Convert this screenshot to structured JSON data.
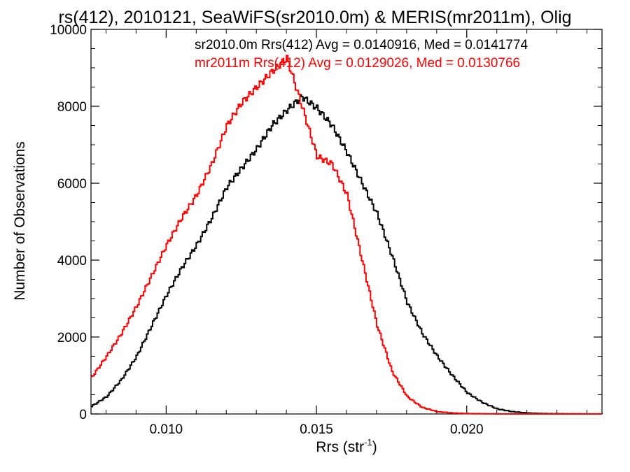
{
  "chart_data": {
    "type": "line",
    "title": "rs(412), 2010121, SeaWiFS(sr2010.0m) & MERIS(mr2011m), Olig",
    "xlabel": "Rrs (str",
    "xlabel_sup": "-1",
    "xlabel_suffix": ")",
    "ylabel": "Number of Observations",
    "xlim": [
      0.0075,
      0.0245
    ],
    "ylim": [
      0,
      10000
    ],
    "x_ticks": [
      0.01,
      0.015,
      0.02
    ],
    "x_tick_labels": [
      "0.010",
      "0.015",
      "0.020"
    ],
    "y_ticks": [
      0,
      2000,
      4000,
      6000,
      8000,
      10000
    ],
    "y_tick_labels": [
      "0",
      "2000",
      "4000",
      "6000",
      "8000",
      "10000"
    ],
    "grid": false,
    "legend": "top-right",
    "series": [
      {
        "name": "sr2010.0m",
        "label": "sr2010.0m Rrs(412) Avg = 0.0140916, Med = 0.0141774",
        "color": "#000000",
        "x": [
          0.0075,
          0.008,
          0.0085,
          0.009,
          0.0095,
          0.01,
          0.0105,
          0.011,
          0.0115,
          0.012,
          0.0125,
          0.013,
          0.0135,
          0.014,
          0.0145,
          0.015,
          0.0155,
          0.016,
          0.0165,
          0.017,
          0.0175,
          0.018,
          0.0185,
          0.019,
          0.0195,
          0.02,
          0.0205,
          0.021,
          0.0215,
          0.022,
          0.0225,
          0.023,
          0.0235,
          0.024,
          0.0245
        ],
        "y": [
          200,
          450,
          900,
          1500,
          2300,
          3100,
          3800,
          4400,
          5100,
          5900,
          6400,
          6900,
          7500,
          7900,
          8250,
          7950,
          7500,
          6800,
          6000,
          5200,
          4100,
          2900,
          2100,
          1500,
          1000,
          550,
          300,
          130,
          60,
          25,
          10,
          5,
          3,
          2,
          1
        ]
      },
      {
        "name": "mr2011m",
        "label": "mr2011m Rrs(412) Avg = 0.0129026, Med = 0.0130766",
        "color": "#ff0000",
        "x": [
          0.0075,
          0.008,
          0.0085,
          0.009,
          0.0095,
          0.01,
          0.0105,
          0.011,
          0.0115,
          0.012,
          0.0125,
          0.013,
          0.0135,
          0.014,
          0.0145,
          0.015,
          0.0155,
          0.016,
          0.0165,
          0.017,
          0.0175,
          0.018,
          0.0185,
          0.019,
          0.0195,
          0.02,
          0.0205,
          0.021,
          0.0215,
          0.022,
          0.0225,
          0.023,
          0.0235,
          0.024,
          0.0245
        ],
        "y": [
          950,
          1500,
          2100,
          2800,
          3600,
          4400,
          5100,
          5700,
          6500,
          7500,
          8100,
          8500,
          8900,
          9250,
          8000,
          6700,
          6500,
          5700,
          4000,
          2300,
          1100,
          450,
          170,
          60,
          25,
          10,
          5,
          2,
          1,
          0,
          0,
          0,
          0,
          0,
          0
        ]
      }
    ]
  }
}
